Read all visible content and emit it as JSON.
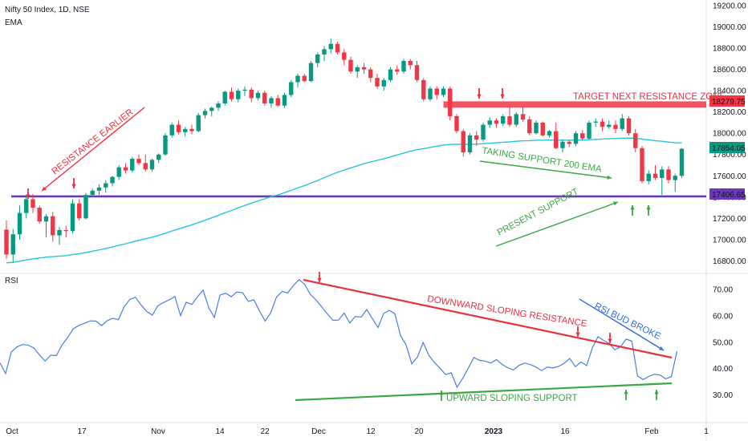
{
  "header": {
    "title": "Nifty 50 Index, 1D, NSE",
    "indicator": "EMA",
    "rsi_label": "RSI"
  },
  "colors": {
    "bull": "#089981",
    "bear": "#f23645",
    "ema": "#26c6da",
    "rsi": "#4a7ee8",
    "support_line": "#6a3ab5",
    "resistance_zone": "#f23645",
    "green_anno": "#3aa844",
    "red_anno": "#e8313f",
    "blue_anno": "#2f6fe0"
  },
  "labels": {
    "resistance_earlier": "RESISTANCE EARLIER",
    "target_zone": "TARGET NEXT RESISTANCE ZONE",
    "taking_support": "TAKING SUPPORT 200 EMA",
    "present_support": "PRESENT SUPPORT",
    "downward_resistance": "DOWNWARD SLOPING RESISTANCE",
    "rsi_bud_broke": "RSI BUD BROKE",
    "upward_support": "UPWARD SLOPING SUPPORT"
  },
  "price_badges": {
    "target": "18279.75",
    "current": "17854.05",
    "support": "17406.65"
  },
  "chart_data": [
    {
      "type": "candlestick",
      "title": "Nifty 50 Index, 1D, NSE",
      "y_ticks": [
        "16800.00",
        "17000.00",
        "17200.00",
        "17400.00",
        "17600.00",
        "17800.00",
        "18000.00",
        "18200.00",
        "18400.00",
        "18600.00",
        "18800.00",
        "19000.00",
        "19200.00"
      ],
      "ylim": [
        16720,
        19230
      ],
      "x_ticks": [
        "Oct",
        "17",
        "Nov",
        "14",
        "22",
        "Dec",
        "12",
        "20",
        "2023",
        "16",
        "Feb",
        "1"
      ],
      "horizontal_levels": {
        "support": 17406.65,
        "resistance_zone": [
          18240,
          18300
        ]
      },
      "candles": [
        [
          17094,
          17180,
          16820,
          16860
        ],
        [
          16860,
          17100,
          16780,
          17050
        ],
        [
          17050,
          17320,
          17000,
          17250
        ],
        [
          17250,
          17420,
          17200,
          17380
        ],
        [
          17380,
          17430,
          17250,
          17300
        ],
        [
          17300,
          17320,
          17150,
          17170
        ],
        [
          17170,
          17240,
          17020,
          17220
        ],
        [
          17220,
          17260,
          16980,
          17040
        ],
        [
          17040,
          17120,
          16950,
          17090
        ],
        [
          17090,
          17130,
          17020,
          17080
        ],
        [
          17080,
          17380,
          17060,
          17340
        ],
        [
          17340,
          17380,
          17180,
          17200
        ],
        [
          17200,
          17440,
          17190,
          17420
        ],
        [
          17420,
          17480,
          17400,
          17460
        ],
        [
          17460,
          17520,
          17420,
          17490
        ],
        [
          17490,
          17560,
          17440,
          17530
        ],
        [
          17530,
          17600,
          17500,
          17590
        ],
        [
          17590,
          17700,
          17560,
          17680
        ],
        [
          17680,
          17720,
          17620,
          17650
        ],
        [
          17650,
          17780,
          17630,
          17760
        ],
        [
          17760,
          17800,
          17700,
          17720
        ],
        [
          17720,
          17800,
          17640,
          17660
        ],
        [
          17660,
          17760,
          17640,
          17750
        ],
        [
          17750,
          17810,
          17720,
          17800
        ],
        [
          17800,
          18000,
          17790,
          17980
        ],
        [
          17980,
          18100,
          17960,
          18080
        ],
        [
          18080,
          18120,
          17990,
          18010
        ],
        [
          18010,
          18060,
          17970,
          18040
        ],
        [
          18040,
          18080,
          17990,
          18020
        ],
        [
          18020,
          18190,
          18010,
          18170
        ],
        [
          18170,
          18230,
          18140,
          18210
        ],
        [
          18210,
          18250,
          18160,
          18240
        ],
        [
          18240,
          18300,
          18210,
          18280
        ],
        [
          18280,
          18400,
          18260,
          18390
        ],
        [
          18390,
          18430,
          18300,
          18320
        ],
        [
          18320,
          18420,
          18290,
          18400
        ],
        [
          18400,
          18440,
          18350,
          18410
        ],
        [
          18410,
          18430,
          18290,
          18330
        ],
        [
          18330,
          18400,
          18310,
          18380
        ],
        [
          18380,
          18400,
          18260,
          18280
        ],
        [
          18280,
          18350,
          18240,
          18330
        ],
        [
          18330,
          18360,
          18250,
          18260
        ],
        [
          18260,
          18380,
          18240,
          18360
        ],
        [
          18360,
          18500,
          18340,
          18480
        ],
        [
          18480,
          18560,
          18430,
          18540
        ],
        [
          18540,
          18560,
          18480,
          18490
        ],
        [
          18490,
          18680,
          18480,
          18660
        ],
        [
          18660,
          18760,
          18620,
          18740
        ],
        [
          18740,
          18820,
          18680,
          18790
        ],
        [
          18790,
          18890,
          18750,
          18840
        ],
        [
          18840,
          18860,
          18740,
          18760
        ],
        [
          18760,
          18790,
          18640,
          18690
        ],
        [
          18690,
          18720,
          18560,
          18580
        ],
        [
          18580,
          18640,
          18520,
          18620
        ],
        [
          18620,
          18660,
          18560,
          18600
        ],
        [
          18600,
          18620,
          18480,
          18520
        ],
        [
          18520,
          18560,
          18420,
          18440
        ],
        [
          18440,
          18520,
          18400,
          18500
        ],
        [
          18500,
          18620,
          18480,
          18600
        ],
        [
          18600,
          18640,
          18550,
          18580
        ],
        [
          18580,
          18700,
          18560,
          18680
        ],
        [
          18680,
          18700,
          18600,
          18640
        ],
        [
          18640,
          18680,
          18480,
          18500
        ],
        [
          18500,
          18520,
          18300,
          18320
        ],
        [
          18320,
          18440,
          18300,
          18420
        ],
        [
          18420,
          18440,
          18320,
          18360
        ],
        [
          18360,
          18440,
          18340,
          18420
        ],
        [
          18420,
          18440,
          18120,
          18160
        ],
        [
          18160,
          18180,
          18000,
          18020
        ],
        [
          18020,
          18040,
          17780,
          17820
        ],
        [
          17820,
          18000,
          17800,
          17980
        ],
        [
          17980,
          18020,
          17880,
          17940
        ],
        [
          17940,
          18100,
          17920,
          18080
        ],
        [
          18080,
          18150,
          18050,
          18120
        ],
        [
          18120,
          18140,
          18050,
          18090
        ],
        [
          18090,
          18180,
          18070,
          18160
        ],
        [
          18160,
          18250,
          18060,
          18080
        ],
        [
          18080,
          18200,
          18060,
          18180
        ],
        [
          18180,
          18250,
          18110,
          18130
        ],
        [
          18130,
          18160,
          17980,
          18000
        ],
        [
          18000,
          18120,
          17990,
          18100
        ],
        [
          18100,
          18110,
          17970,
          17980
        ],
        [
          17980,
          18030,
          17960,
          18020
        ],
        [
          18020,
          18100,
          17850,
          17860
        ],
        [
          17860,
          17940,
          17820,
          17920
        ],
        [
          17920,
          17940,
          17870,
          17900
        ],
        [
          17900,
          18020,
          17880,
          18000
        ],
        [
          18000,
          18030,
          17930,
          17950
        ],
        [
          17950,
          18120,
          17940,
          18100
        ],
        [
          18100,
          18140,
          18060,
          18110
        ],
        [
          18110,
          18140,
          18020,
          18060
        ],
        [
          18060,
          18120,
          18040,
          18080
        ],
        [
          18080,
          18120,
          18000,
          18040
        ],
        [
          18040,
          18180,
          18020,
          18140
        ],
        [
          18140,
          18160,
          17980,
          18000
        ],
        [
          18000,
          18040,
          17820,
          17860
        ],
        [
          17860,
          17880,
          17530,
          17550
        ],
        [
          17550,
          17650,
          17520,
          17620
        ],
        [
          17620,
          17700,
          17560,
          17580
        ],
        [
          17580,
          17690,
          17420,
          17660
        ],
        [
          17660,
          17690,
          17530,
          17560
        ],
        [
          17560,
          17620,
          17450,
          17600
        ],
        [
          17600,
          17860,
          17580,
          17854
        ]
      ]
    },
    {
      "type": "line",
      "title": "RSI",
      "y_ticks": [
        "30.00",
        "40.00",
        "50.00",
        "60.00",
        "70.00"
      ],
      "ylim": [
        21,
        74
      ],
      "trendlines": {
        "downward_resistance": [
          [
            1,
            74
          ],
          [
            28,
            46
          ]
        ],
        "upward_support": [
          [
            2,
            30
          ],
          [
            28,
            36
          ]
        ]
      },
      "series": [
        {
          "values": [
            42.1,
            38.1,
            46.3,
            48.2,
            49.1,
            48.9,
            47.8,
            45.2,
            42.8,
            45.1,
            44.9,
            49.0,
            51.8,
            55.1,
            56.4,
            57.2,
            58.1,
            58.0,
            56.3,
            58.2,
            59.1,
            58.6,
            63.4,
            66.2,
            67.1,
            64.2,
            61.7,
            60.3,
            63.9,
            65.1,
            66.1,
            67.4,
            60.1,
            65.2,
            64.3,
            67.2,
            69.8,
            63.1,
            59.4,
            67.9,
            68.6,
            67.3,
            69.1,
            68.8,
            65.5,
            66.1,
            61.9,
            58.0,
            61.2,
            67.1,
            69.3,
            68.7,
            71.5,
            73.8,
            72.0,
            68.2,
            66.1,
            63.5,
            60.8,
            58.3,
            58.4,
            61.1,
            57.3,
            59.8,
            59.5,
            62.4,
            59.0,
            55.6,
            60.9,
            62.1,
            60.8,
            52.5,
            48.9,
            41.8,
            44.4,
            49.9,
            45.1,
            42.3,
            40.1,
            37.7,
            38.4,
            32.9,
            36.2,
            40.1,
            44.2,
            43.1,
            42.8,
            42.1,
            43.4,
            41.6,
            40.3,
            39.5,
            41.2,
            42.1,
            41.5,
            40.6,
            39.2,
            40.6,
            40.2,
            40.8,
            42.0,
            43.8,
            40.7,
            42.5,
            41.1,
            47.9,
            52.1,
            50.7,
            49.5,
            47.1,
            48.3,
            51.2,
            50.4,
            37.2,
            35.8,
            37.0,
            37.8,
            37.5,
            36.1,
            36.9,
            46.6
          ]
        }
      ]
    }
  ]
}
